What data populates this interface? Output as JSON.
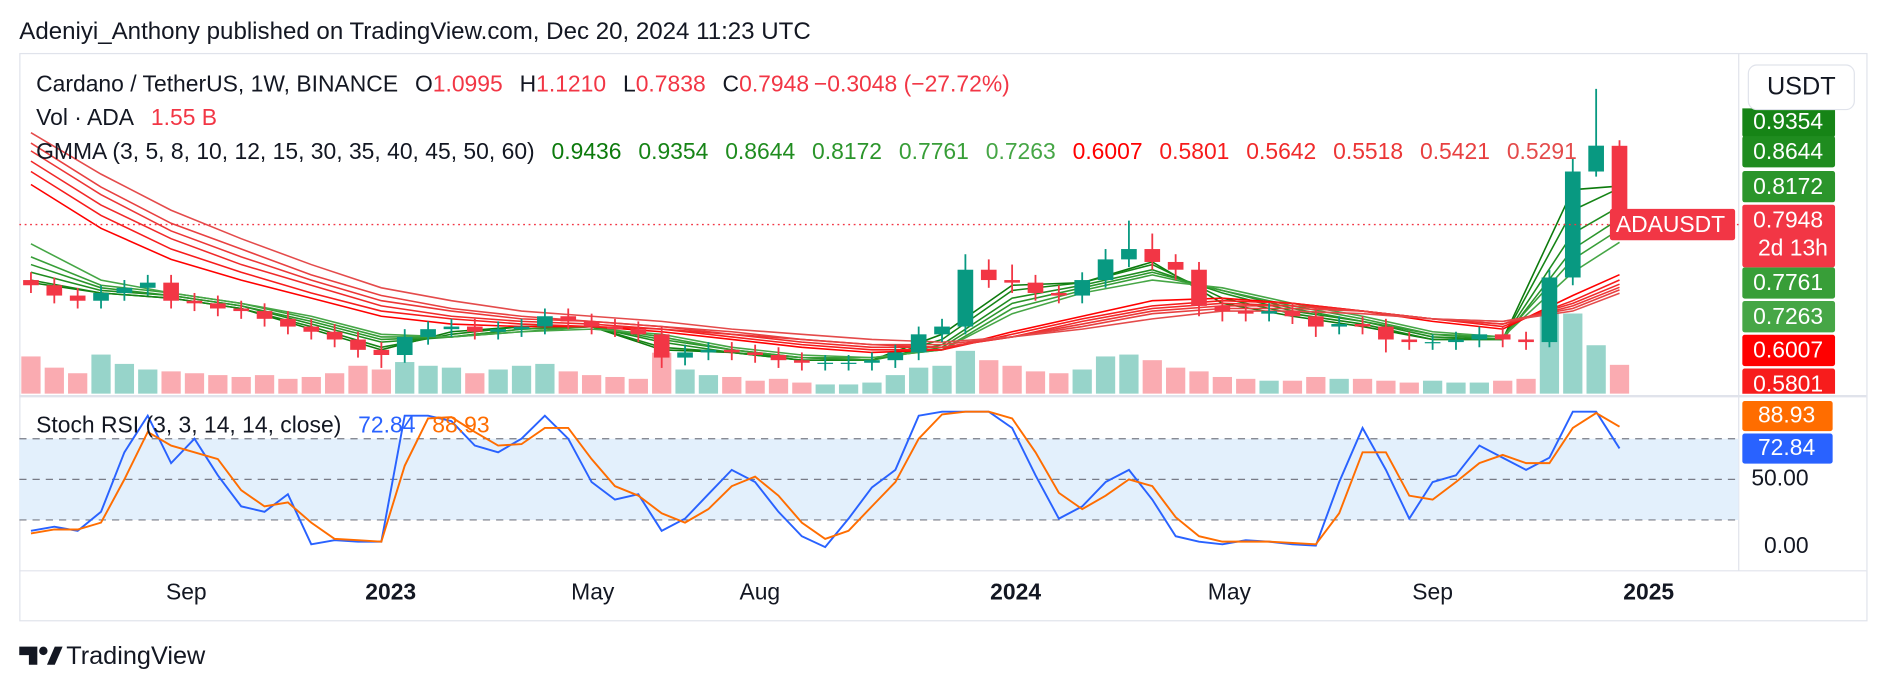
{
  "header": {
    "published": "Adeniyi_Anthony published on TradingView.com, Dec 20, 2024 11:23 UTC",
    "brand": "TradingView"
  },
  "chart_data": [
    {
      "type": "candlestick",
      "symbol": "Cardano / TetherUS, 1W, BINANCE",
      "ohlc_labels": [
        {
          "key": "O",
          "value": "1.0995"
        },
        {
          "key": "H",
          "value": "1.1210"
        },
        {
          "key": "L",
          "value": "0.7838"
        },
        {
          "key": "C",
          "value": "0.7948"
        }
      ],
      "change": "−0.3048 (−27.72%)",
      "currency": "USDT",
      "ticker_tag": "ADAUSDT",
      "countdown": "2d 13h",
      "up_color": "#089981",
      "down_color": "#f23645",
      "x": [
        1,
        3,
        5,
        7,
        9,
        11,
        13,
        15,
        17,
        19,
        21,
        23,
        25,
        27,
        29,
        31,
        33,
        35,
        37,
        39,
        41,
        43,
        45,
        47,
        49,
        51,
        53,
        55,
        57,
        59,
        61,
        63,
        65,
        67,
        69,
        71,
        73,
        75,
        77,
        79,
        81,
        83,
        85,
        87,
        89,
        91,
        93,
        95,
        97,
        99,
        101,
        103,
        105,
        107,
        109,
        111,
        113,
        115,
        117,
        119,
        121,
        123,
        125,
        127,
        129,
        131,
        133,
        135,
        137
      ],
      "open": [
        0.58,
        0.56,
        0.52,
        0.5,
        0.53,
        0.55,
        0.57,
        0.5,
        0.49,
        0.47,
        0.46,
        0.43,
        0.4,
        0.38,
        0.35,
        0.31,
        0.29,
        0.36,
        0.39,
        0.4,
        0.38,
        0.39,
        0.4,
        0.44,
        0.42,
        0.4,
        0.39,
        0.37,
        0.28,
        0.3,
        0.31,
        0.3,
        0.29,
        0.27,
        0.26,
        0.26,
        0.26,
        0.27,
        0.3,
        0.37,
        0.4,
        0.62,
        0.58,
        0.57,
        0.53,
        0.52,
        0.58,
        0.66,
        0.7,
        0.65,
        0.62,
        0.48,
        0.46,
        0.45,
        0.46,
        0.44,
        0.4,
        0.41,
        0.4,
        0.35,
        0.34,
        0.34,
        0.35,
        0.37,
        0.35,
        0.34,
        0.59,
        1.0,
        1.0995
      ],
      "high": [
        0.61,
        0.59,
        0.55,
        0.56,
        0.58,
        0.6,
        0.6,
        0.53,
        0.52,
        0.5,
        0.49,
        0.46,
        0.43,
        0.41,
        0.38,
        0.34,
        0.39,
        0.42,
        0.43,
        0.43,
        0.42,
        0.43,
        0.47,
        0.47,
        0.45,
        0.43,
        0.42,
        0.4,
        0.33,
        0.34,
        0.34,
        0.33,
        0.32,
        0.3,
        0.29,
        0.29,
        0.3,
        0.33,
        0.4,
        0.43,
        0.68,
        0.66,
        0.64,
        0.6,
        0.56,
        0.61,
        0.7,
        0.81,
        0.76,
        0.68,
        0.65,
        0.51,
        0.49,
        0.49,
        0.49,
        0.47,
        0.44,
        0.44,
        0.43,
        0.38,
        0.37,
        0.38,
        0.4,
        0.4,
        0.38,
        0.62,
        1.05,
        1.32,
        1.121
      ],
      "low": [
        0.53,
        0.49,
        0.47,
        0.47,
        0.5,
        0.52,
        0.47,
        0.46,
        0.44,
        0.43,
        0.4,
        0.37,
        0.35,
        0.32,
        0.28,
        0.24,
        0.26,
        0.33,
        0.36,
        0.35,
        0.35,
        0.36,
        0.37,
        0.39,
        0.37,
        0.36,
        0.34,
        0.24,
        0.25,
        0.27,
        0.27,
        0.26,
        0.24,
        0.23,
        0.23,
        0.23,
        0.23,
        0.24,
        0.27,
        0.34,
        0.37,
        0.55,
        0.53,
        0.5,
        0.49,
        0.49,
        0.55,
        0.63,
        0.62,
        0.58,
        0.44,
        0.42,
        0.42,
        0.42,
        0.41,
        0.36,
        0.37,
        0.37,
        0.3,
        0.31,
        0.31,
        0.31,
        0.32,
        0.32,
        0.31,
        0.32,
        0.56,
        0.98,
        0.7838
      ],
      "close": [
        0.56,
        0.52,
        0.5,
        0.53,
        0.55,
        0.57,
        0.5,
        0.49,
        0.47,
        0.46,
        0.43,
        0.4,
        0.38,
        0.35,
        0.31,
        0.29,
        0.36,
        0.39,
        0.4,
        0.38,
        0.39,
        0.4,
        0.44,
        0.42,
        0.4,
        0.39,
        0.37,
        0.28,
        0.3,
        0.31,
        0.3,
        0.29,
        0.27,
        0.26,
        0.26,
        0.26,
        0.27,
        0.3,
        0.37,
        0.4,
        0.62,
        0.58,
        0.57,
        0.53,
        0.52,
        0.58,
        0.66,
        0.7,
        0.65,
        0.62,
        0.48,
        0.46,
        0.45,
        0.46,
        0.44,
        0.4,
        0.41,
        0.4,
        0.35,
        0.34,
        0.34,
        0.35,
        0.37,
        0.35,
        0.34,
        0.59,
        1.0,
        1.1,
        0.7948
      ],
      "ylim": [
        0.14,
        1.44
      ],
      "volume": {
        "name": "Vol · ADA",
        "values": [
          2.0,
          1.4,
          1.1,
          2.1,
          1.6,
          1.3,
          1.2,
          1.1,
          1.0,
          0.9,
          1.0,
          0.8,
          0.9,
          1.1,
          1.5,
          1.3,
          1.7,
          1.5,
          1.4,
          1.1,
          1.3,
          1.5,
          1.6,
          1.2,
          1.0,
          0.9,
          0.8,
          2.2,
          1.3,
          1.0,
          0.9,
          0.7,
          0.8,
          0.6,
          0.5,
          0.5,
          0.6,
          1.0,
          1.4,
          1.5,
          2.3,
          1.8,
          1.5,
          1.2,
          1.1,
          1.3,
          2.0,
          2.1,
          1.8,
          1.4,
          1.2,
          0.9,
          0.8,
          0.7,
          0.7,
          0.9,
          0.8,
          0.8,
          0.7,
          0.6,
          0.7,
          0.6,
          0.6,
          0.7,
          0.8,
          4.4,
          4.3,
          2.6,
          1.55
        ],
        "value_labels": [
          null,
          null,
          null,
          null,
          null,
          null,
          null,
          null,
          null,
          null,
          null,
          null,
          null,
          null,
          null,
          null,
          null,
          null,
          null,
          null,
          null,
          null,
          null,
          null,
          null,
          null,
          null,
          null,
          null,
          null,
          null,
          null,
          null,
          null,
          null,
          null,
          null,
          null,
          null,
          null,
          null,
          null,
          null,
          null,
          null,
          null,
          null,
          null,
          null,
          null,
          null,
          null,
          null,
          null,
          null,
          null,
          null,
          null,
          null,
          null,
          null,
          null,
          null,
          null,
          null,
          null,
          null,
          null,
          "1.55 B"
        ],
        "ylim": [
          0,
          18
        ]
      },
      "gmma": {
        "name": "GMMA (3, 5, 8, 10, 12, 15, 30, 35, 40, 45, 50, 60)",
        "x": [
          1,
          7,
          13,
          19,
          25,
          31,
          37,
          43,
          49,
          55,
          61,
          67,
          73,
          79,
          85,
          91,
          97,
          103,
          109,
          115,
          121,
          127,
          133,
          137
        ],
        "series": [
          {
            "color": "#0c7a0c",
            "values": [
              0.57,
              0.53,
              0.51,
              0.47,
              0.39,
              0.31,
              0.38,
              0.4,
              0.4,
              0.31,
              0.3,
              0.27,
              0.27,
              0.37,
              0.56,
              0.57,
              0.65,
              0.49,
              0.44,
              0.4,
              0.35,
              0.35,
              0.93,
              0.9436
            ]
          },
          {
            "color": "#168416",
            "values": [
              0.58,
              0.53,
              0.51,
              0.47,
              0.4,
              0.32,
              0.37,
              0.4,
              0.4,
              0.32,
              0.3,
              0.27,
              0.27,
              0.35,
              0.54,
              0.57,
              0.64,
              0.51,
              0.45,
              0.41,
              0.35,
              0.35,
              0.85,
              0.9354
            ]
          },
          {
            "color": "#1f8c1f",
            "values": [
              0.61,
              0.54,
              0.52,
              0.48,
              0.41,
              0.34,
              0.36,
              0.39,
              0.4,
              0.34,
              0.3,
              0.28,
              0.27,
              0.33,
              0.51,
              0.56,
              0.62,
              0.53,
              0.46,
              0.42,
              0.36,
              0.35,
              0.76,
              0.8644
            ]
          },
          {
            "color": "#2b952b",
            "values": [
              0.64,
              0.55,
              0.52,
              0.48,
              0.42,
              0.35,
              0.36,
              0.39,
              0.4,
              0.35,
              0.31,
              0.28,
              0.27,
              0.32,
              0.49,
              0.55,
              0.61,
              0.54,
              0.47,
              0.42,
              0.37,
              0.35,
              0.7,
              0.8172
            ]
          },
          {
            "color": "#389e38",
            "values": [
              0.67,
              0.56,
              0.53,
              0.49,
              0.43,
              0.36,
              0.36,
              0.38,
              0.4,
              0.36,
              0.31,
              0.28,
              0.28,
              0.31,
              0.47,
              0.54,
              0.6,
              0.54,
              0.48,
              0.43,
              0.37,
              0.36,
              0.66,
              0.7761
            ]
          },
          {
            "color": "#46a646",
            "values": [
              0.72,
              0.58,
              0.53,
              0.49,
              0.44,
              0.37,
              0.36,
              0.38,
              0.39,
              0.37,
              0.32,
              0.29,
              0.28,
              0.31,
              0.45,
              0.53,
              0.58,
              0.55,
              0.49,
              0.44,
              0.38,
              0.36,
              0.61,
              0.7263
            ]
          },
          {
            "color": "#ff0000",
            "values": [
              0.95,
              0.78,
              0.66,
              0.58,
              0.51,
              0.44,
              0.41,
              0.4,
              0.4,
              0.38,
              0.35,
              0.32,
              0.3,
              0.31,
              0.38,
              0.44,
              0.5,
              0.51,
              0.49,
              0.46,
              0.42,
              0.39,
              0.52,
              0.6007
            ]
          },
          {
            "color": "#f71c1c",
            "values": [
              1.0,
              0.83,
              0.7,
              0.61,
              0.53,
              0.46,
              0.43,
              0.41,
              0.4,
              0.39,
              0.36,
              0.33,
              0.31,
              0.31,
              0.37,
              0.43,
              0.48,
              0.5,
              0.49,
              0.46,
              0.43,
              0.4,
              0.5,
              0.5801
            ]
          },
          {
            "color": "#f02a2a",
            "values": [
              1.04,
              0.87,
              0.74,
              0.64,
              0.56,
              0.48,
              0.44,
              0.42,
              0.41,
              0.39,
              0.37,
              0.34,
              0.32,
              0.32,
              0.36,
              0.42,
              0.47,
              0.49,
              0.48,
              0.46,
              0.43,
              0.41,
              0.49,
              0.5642
            ]
          },
          {
            "color": "#ec3636",
            "values": [
              1.08,
              0.91,
              0.77,
              0.67,
              0.58,
              0.5,
              0.46,
              0.43,
              0.42,
              0.4,
              0.37,
              0.35,
              0.33,
              0.32,
              0.36,
              0.41,
              0.46,
              0.48,
              0.48,
              0.46,
              0.43,
              0.41,
              0.48,
              0.5518
            ]
          },
          {
            "color": "#e84040",
            "values": [
              1.11,
              0.94,
              0.8,
              0.7,
              0.6,
              0.52,
              0.47,
              0.44,
              0.42,
              0.4,
              0.38,
              0.35,
              0.33,
              0.33,
              0.36,
              0.4,
              0.45,
              0.47,
              0.47,
              0.46,
              0.43,
              0.42,
              0.47,
              0.5421
            ]
          },
          {
            "color": "#e44b4b",
            "values": [
              1.15,
              0.99,
              0.85,
              0.74,
              0.64,
              0.55,
              0.5,
              0.46,
              0.44,
              0.42,
              0.39,
              0.37,
              0.35,
              0.34,
              0.36,
              0.39,
              0.43,
              0.46,
              0.46,
              0.45,
              0.43,
              0.42,
              0.46,
              0.5291
            ]
          }
        ]
      },
      "xlim": [
        0,
        147
      ],
      "xticks": [
        {
          "value": 14.3,
          "label": "Sep"
        },
        {
          "value": 31.8,
          "label": "2023"
        },
        {
          "value": 49.1,
          "label": "May"
        },
        {
          "value": 63.4,
          "label": "Aug"
        },
        {
          "value": 85.3,
          "label": "2024"
        },
        {
          "value": 103.6,
          "label": "May"
        },
        {
          "value": 121.0,
          "label": "Sep"
        },
        {
          "value": 139.5,
          "label": "2025"
        }
      ]
    },
    {
      "type": "line",
      "title": "Stoch RSI (3, 3, 14, 14, close)",
      "x": [
        1,
        3,
        5,
        7,
        9,
        11,
        13,
        15,
        17,
        19,
        21,
        23,
        25,
        27,
        29,
        31,
        33,
        35,
        37,
        39,
        41,
        43,
        45,
        47,
        49,
        51,
        53,
        55,
        57,
        59,
        61,
        63,
        65,
        67,
        69,
        71,
        73,
        75,
        77,
        79,
        81,
        83,
        85,
        87,
        89,
        91,
        93,
        95,
        97,
        99,
        101,
        103,
        105,
        107,
        109,
        111,
        113,
        115,
        117,
        119,
        121,
        123,
        125,
        127,
        129,
        131,
        133,
        135,
        137
      ],
      "series": [
        {
          "color": "#2962ff",
          "values": [
            12,
            15,
            12,
            26,
            70,
            97,
            62,
            80,
            53,
            30,
            26,
            39,
            2,
            5,
            4,
            4,
            97,
            97,
            93,
            75,
            70,
            80,
            97,
            80,
            48,
            35,
            39,
            12,
            21,
            39,
            57,
            48,
            26,
            8,
            0,
            21,
            44,
            57,
            97,
            100,
            100,
            100,
            88,
            53,
            21,
            30,
            48,
            57,
            35,
            8,
            4,
            2,
            5,
            4,
            2,
            1,
            48,
            88,
            57,
            21,
            48,
            53,
            75,
            66,
            57,
            66,
            100,
            100,
            72.84
          ]
        },
        {
          "color": "#ff6d00",
          "values": [
            10,
            13,
            13,
            18,
            50,
            85,
            75,
            70,
            65,
            42,
            30,
            33,
            18,
            6,
            5,
            4,
            60,
            95,
            96,
            85,
            75,
            76,
            88,
            88,
            65,
            45,
            38,
            25,
            18,
            28,
            45,
            52,
            38,
            18,
            6,
            12,
            30,
            48,
            80,
            98,
            100,
            100,
            95,
            70,
            40,
            28,
            38,
            50,
            45,
            22,
            8,
            4,
            4,
            4,
            3,
            2,
            25,
            70,
            70,
            38,
            35,
            48,
            62,
            68,
            62,
            62,
            88,
            99,
            88.93
          ]
        }
      ],
      "xlim": [
        0,
        147
      ],
      "ylim": [
        -14,
        107
      ],
      "yticks": [
        {
          "value": 50,
          "label": "50.00"
        },
        {
          "value": 0,
          "label": "0.00"
        }
      ],
      "band": [
        20,
        80
      ],
      "band_color": "#e3f0fc"
    }
  ]
}
